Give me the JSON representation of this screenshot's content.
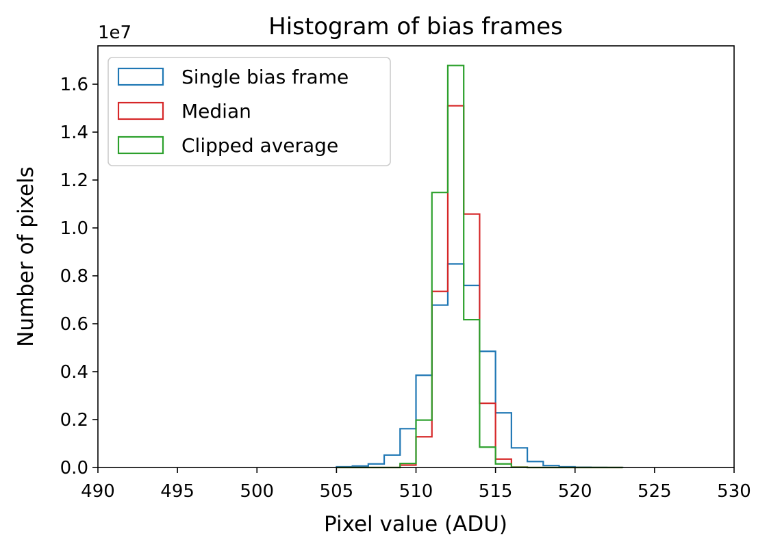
{
  "chart_data": {
    "type": "histogram-step",
    "title": "Histogram of bias frames",
    "xlabel": "Pixel value (ADU)",
    "ylabel": "Number of pixels",
    "y_offset_label": "1e7",
    "xlim": [
      490,
      530
    ],
    "ylim": [
      0,
      1.76
    ],
    "x_ticks": [
      490,
      495,
      500,
      505,
      510,
      515,
      520,
      525,
      530
    ],
    "x_tick_labels": [
      "490",
      "495",
      "500",
      "505",
      "510",
      "515",
      "520",
      "525",
      "530"
    ],
    "y_ticks": [
      0,
      0.2,
      0.4,
      0.6,
      0.8,
      1.0,
      1.2,
      1.4,
      1.6
    ],
    "y_tick_labels": [
      "0.0",
      "0.2",
      "0.4",
      "0.6",
      "0.8",
      "1.0",
      "1.2",
      "1.4",
      "1.6"
    ],
    "legend_position": "top-left",
    "bin_edges": [
      505,
      506,
      507,
      508,
      509,
      510,
      511,
      512,
      513,
      514,
      515,
      516,
      517,
      518,
      519,
      520,
      521,
      522,
      523
    ],
    "series": [
      {
        "name": "Single bias frame",
        "color": "#1f77b4",
        "values": [
          0.003,
          0.006,
          0.015,
          0.052,
          0.162,
          0.385,
          0.678,
          0.85,
          0.76,
          0.485,
          0.228,
          0.082,
          0.025,
          0.008,
          0.003,
          0.001,
          0.0005,
          0.0002
        ]
      },
      {
        "name": "Median",
        "color": "#d62728",
        "values": [
          0,
          0,
          0,
          0,
          0.01,
          0.128,
          0.735,
          1.51,
          1.058,
          0.268,
          0.035,
          0.002,
          0,
          0,
          0,
          0,
          0,
          0
        ]
      },
      {
        "name": "Clipped average",
        "color": "#2ca02c",
        "values": [
          0,
          0,
          0,
          0,
          0.017,
          0.198,
          1.148,
          1.678,
          0.617,
          0.085,
          0.015,
          0.001,
          0,
          0,
          0,
          0,
          0,
          0
        ]
      }
    ]
  }
}
